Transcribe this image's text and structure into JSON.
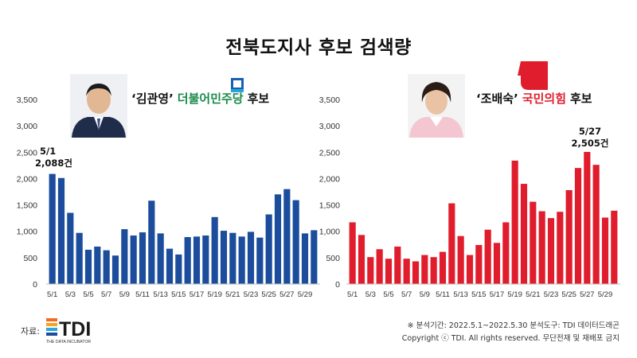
{
  "title": "전북도지사 후보 검색량",
  "candidates": [
    {
      "name_quote": "‘김관영’",
      "party": "더불어민주당",
      "suffix": "후보"
    },
    {
      "name_quote": "‘조배숙’",
      "party": "국민의힘",
      "suffix": "후보"
    }
  ],
  "colors": {
    "left_bars": "#1b4d9c",
    "right_bars": "#e01d2c",
    "dem_party": "#1a8a4a",
    "ppp_party": "#e01d2c"
  },
  "chart_data": [
    {
      "type": "bar",
      "categories": [
        "5/1",
        "5/2",
        "5/3",
        "5/4",
        "5/5",
        "5/6",
        "5/7",
        "5/8",
        "5/9",
        "5/10",
        "5/11",
        "5/12",
        "5/13",
        "5/14",
        "5/15",
        "5/16",
        "5/17",
        "5/18",
        "5/19",
        "5/20",
        "5/21",
        "5/22",
        "5/23",
        "5/24",
        "5/25",
        "5/26",
        "5/27",
        "5/28",
        "5/29",
        "5/30"
      ],
      "tick_labels": [
        "5/1",
        "5/3",
        "5/5",
        "5/7",
        "5/9",
        "5/11",
        "5/13",
        "5/15",
        "5/17",
        "5/19",
        "5/21",
        "5/23",
        "5/25",
        "5/27",
        "5/29"
      ],
      "values": [
        2088,
        2010,
        1350,
        970,
        650,
        710,
        640,
        540,
        1040,
        920,
        980,
        1580,
        960,
        670,
        560,
        890,
        900,
        920,
        1270,
        1010,
        970,
        900,
        990,
        880,
        1320,
        1700,
        1800,
        1590,
        960,
        1020
      ],
      "ylim": [
        0,
        3500
      ],
      "yticks": [
        "0",
        "500",
        "1,000",
        "1,500",
        "2,000",
        "2,500",
        "3,000",
        "3,500"
      ],
      "annotation": {
        "line1": "5/1",
        "line2": "2,088건"
      }
    },
    {
      "type": "bar",
      "categories": [
        "5/1",
        "5/2",
        "5/3",
        "5/4",
        "5/5",
        "5/6",
        "5/7",
        "5/8",
        "5/9",
        "5/10",
        "5/11",
        "5/12",
        "5/13",
        "5/14",
        "5/15",
        "5/16",
        "5/17",
        "5/18",
        "5/19",
        "5/20",
        "5/21",
        "5/22",
        "5/23",
        "5/24",
        "5/25",
        "5/26",
        "5/27",
        "5/28",
        "5/29",
        "5/30"
      ],
      "tick_labels": [
        "5/1",
        "5/3",
        "5/5",
        "5/7",
        "5/9",
        "5/11",
        "5/13",
        "5/15",
        "5/17",
        "5/19",
        "5/21",
        "5/23",
        "5/25",
        "5/27",
        "5/29"
      ],
      "values": [
        1170,
        930,
        510,
        660,
        480,
        710,
        480,
        430,
        550,
        510,
        610,
        1530,
        910,
        550,
        740,
        1030,
        780,
        1170,
        2340,
        1900,
        1560,
        1380,
        1250,
        1370,
        1780,
        2200,
        2505,
        2260,
        1260,
        1390
      ],
      "ylim": [
        0,
        3500
      ],
      "yticks": [
        "0",
        "500",
        "1,000",
        "1,500",
        "2,000",
        "2,500",
        "3,000",
        "3,500"
      ],
      "annotation": {
        "line1": "5/27",
        "line2": "2,505건"
      }
    }
  ],
  "footer": {
    "source_label": "자료:",
    "logo_text": "TDI",
    "logo_sub": "THE DATA INCUBATOR",
    "note_line1": "※ 분석기간: 2022.5.1~2022.5.30  분석도구: TDI 데이터드래곤",
    "note_line2": "Copyright ⓒ TDI. All rights reserved. 무단전재 및 재배포 금지"
  }
}
